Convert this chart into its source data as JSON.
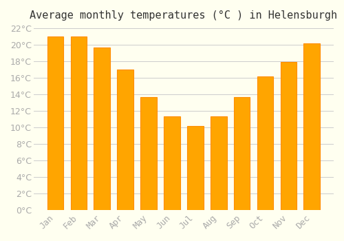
{
  "title": "Average monthly temperatures (°C ) in Helensburgh",
  "months": [
    "Jan",
    "Feb",
    "Mar",
    "Apr",
    "May",
    "Jun",
    "Jul",
    "Aug",
    "Sep",
    "Oct",
    "Nov",
    "Dec"
  ],
  "values": [
    21,
    21,
    19.7,
    17,
    13.7,
    11.3,
    10.2,
    11.3,
    13.7,
    16.2,
    17.9,
    20.2
  ],
  "bar_color": "#FFA500",
  "bar_edge_color": "#FF8C00",
  "background_color": "#FFFFF0",
  "grid_color": "#CCCCCC",
  "ylim": [
    0,
    22
  ],
  "yticks": [
    0,
    2,
    4,
    6,
    8,
    10,
    12,
    14,
    16,
    18,
    20,
    22
  ],
  "title_fontsize": 11,
  "tick_fontsize": 9,
  "tick_label_color": "#AAAAAA",
  "font_family": "monospace"
}
